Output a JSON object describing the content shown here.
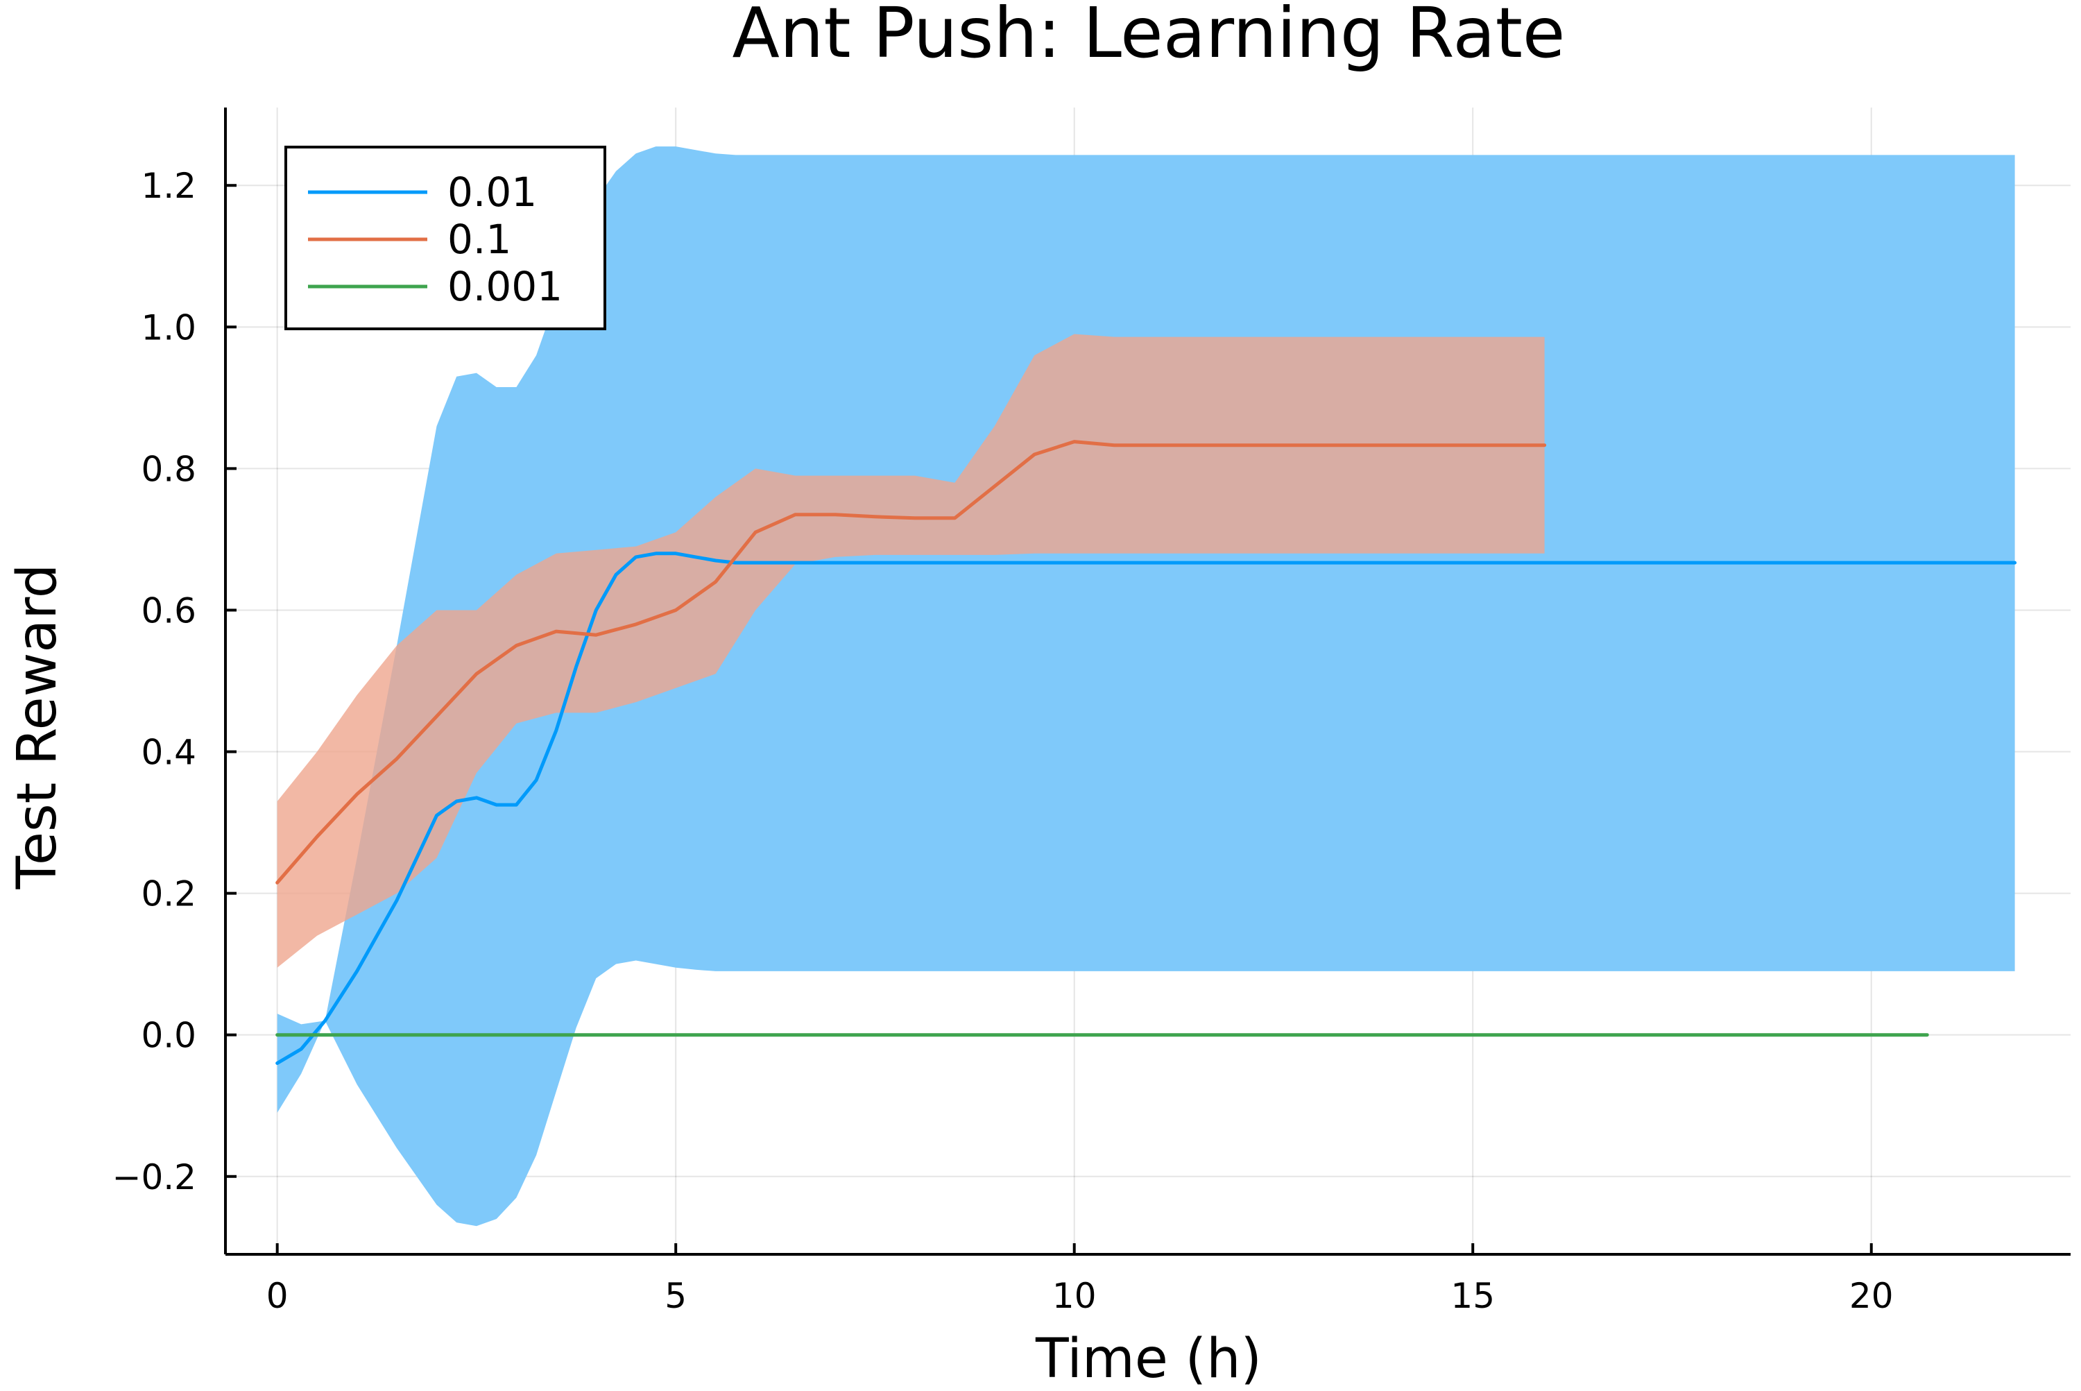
{
  "chart_data": {
    "type": "line",
    "title": "Ant Push: Learning Rate",
    "xlabel": "Time (h)",
    "ylabel": "Test Reward",
    "xlim": [
      -0.65,
      22.5
    ],
    "ylim": [
      -0.31,
      1.31
    ],
    "x_ticks": [
      0,
      5,
      10,
      15,
      20
    ],
    "x_tick_labels": [
      "0",
      "5",
      "10",
      "15",
      "20"
    ],
    "y_ticks": [
      -0.2,
      0.0,
      0.2,
      0.4,
      0.6,
      0.8,
      1.0,
      1.2
    ],
    "y_tick_labels": [
      "−0.2",
      "0.0",
      "0.2",
      "0.4",
      "0.6",
      "0.8",
      "1.0",
      "1.2"
    ],
    "grid": true,
    "legend_position": "top-left",
    "series": [
      {
        "name": "0.01",
        "color": "#009AFA",
        "band_color": "#7FC9FA",
        "x": [
          0,
          0.3,
          0.6,
          1.0,
          1.5,
          2.0,
          2.25,
          2.5,
          2.75,
          3.0,
          3.25,
          3.5,
          3.75,
          4.0,
          4.25,
          4.5,
          4.75,
          5.0,
          5.25,
          5.5,
          5.75,
          6.0,
          6.5,
          10,
          15,
          20,
          21.8
        ],
        "y": [
          -0.04,
          -0.02,
          0.02,
          0.09,
          0.19,
          0.31,
          0.33,
          0.335,
          0.325,
          0.325,
          0.36,
          0.43,
          0.52,
          0.6,
          0.65,
          0.675,
          0.68,
          0.68,
          0.675,
          0.67,
          0.667,
          0.667,
          0.667,
          0.667,
          0.667,
          0.667,
          0.667
        ],
        "upper": [
          0.03,
          0.015,
          0.02,
          0.25,
          0.55,
          0.86,
          0.93,
          0.935,
          0.915,
          0.915,
          0.96,
          1.04,
          1.12,
          1.18,
          1.22,
          1.245,
          1.255,
          1.255,
          1.25,
          1.245,
          1.243,
          1.243,
          1.243,
          1.243,
          1.243,
          1.243,
          1.243
        ],
        "lower": [
          -0.11,
          -0.055,
          0.02,
          -0.07,
          -0.16,
          -0.24,
          -0.265,
          -0.27,
          -0.26,
          -0.23,
          -0.17,
          -0.08,
          0.01,
          0.08,
          0.1,
          0.105,
          0.1,
          0.095,
          0.092,
          0.09,
          0.09,
          0.09,
          0.09,
          0.09,
          0.09,
          0.09,
          0.09
        ]
      },
      {
        "name": "0.1",
        "color": "#E26F46",
        "band_color": "#EFA68F",
        "x": [
          0,
          0.5,
          1.0,
          1.5,
          2.0,
          2.5,
          3.0,
          3.5,
          4.0,
          4.5,
          5.0,
          5.5,
          6.0,
          6.5,
          7.0,
          7.5,
          8.0,
          8.5,
          9.0,
          9.5,
          10.0,
          10.5,
          15.0,
          15.9
        ],
        "y": [
          0.215,
          0.28,
          0.34,
          0.39,
          0.45,
          0.51,
          0.55,
          0.57,
          0.565,
          0.58,
          0.6,
          0.64,
          0.71,
          0.735,
          0.735,
          0.732,
          0.73,
          0.73,
          0.775,
          0.82,
          0.838,
          0.833,
          0.833,
          0.833
        ],
        "upper": [
          0.33,
          0.4,
          0.48,
          0.55,
          0.6,
          0.6,
          0.65,
          0.68,
          0.685,
          0.69,
          0.71,
          0.76,
          0.8,
          0.79,
          0.79,
          0.79,
          0.79,
          0.78,
          0.86,
          0.96,
          0.99,
          0.986,
          0.986,
          0.986
        ],
        "lower": [
          0.095,
          0.14,
          0.17,
          0.2,
          0.25,
          0.37,
          0.44,
          0.455,
          0.455,
          0.47,
          0.49,
          0.51,
          0.6,
          0.665,
          0.675,
          0.678,
          0.678,
          0.678,
          0.678,
          0.68,
          0.68,
          0.68,
          0.68,
          0.68
        ]
      },
      {
        "name": "0.001",
        "color": "#3EA44E",
        "x": [
          0,
          20.7
        ],
        "y": [
          0.0,
          0.0
        ]
      }
    ]
  }
}
